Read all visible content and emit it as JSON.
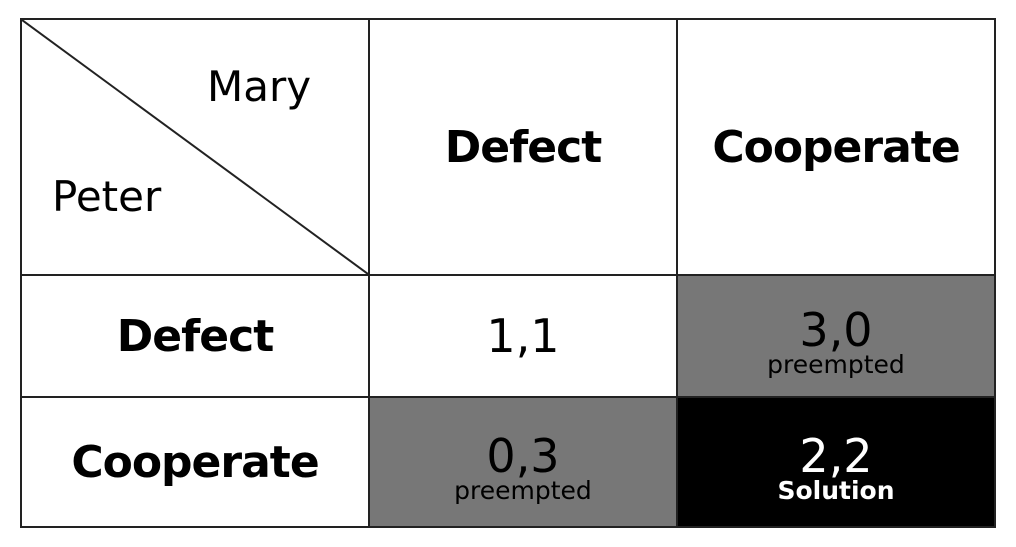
{
  "matrix": {
    "column_player": "Mary",
    "row_player": "Peter",
    "columns": [
      "Defect",
      "Cooperate"
    ],
    "rows": [
      {
        "label": "Defect",
        "cells": [
          {
            "payoff": "1,1"
          },
          {
            "payoff": "3,0",
            "note": "preempted"
          }
        ]
      },
      {
        "label": "Cooperate",
        "cells": [
          {
            "payoff": "0,3",
            "note": "preempted"
          },
          {
            "payoff": "2,2",
            "note": "Solution"
          }
        ]
      }
    ]
  }
}
